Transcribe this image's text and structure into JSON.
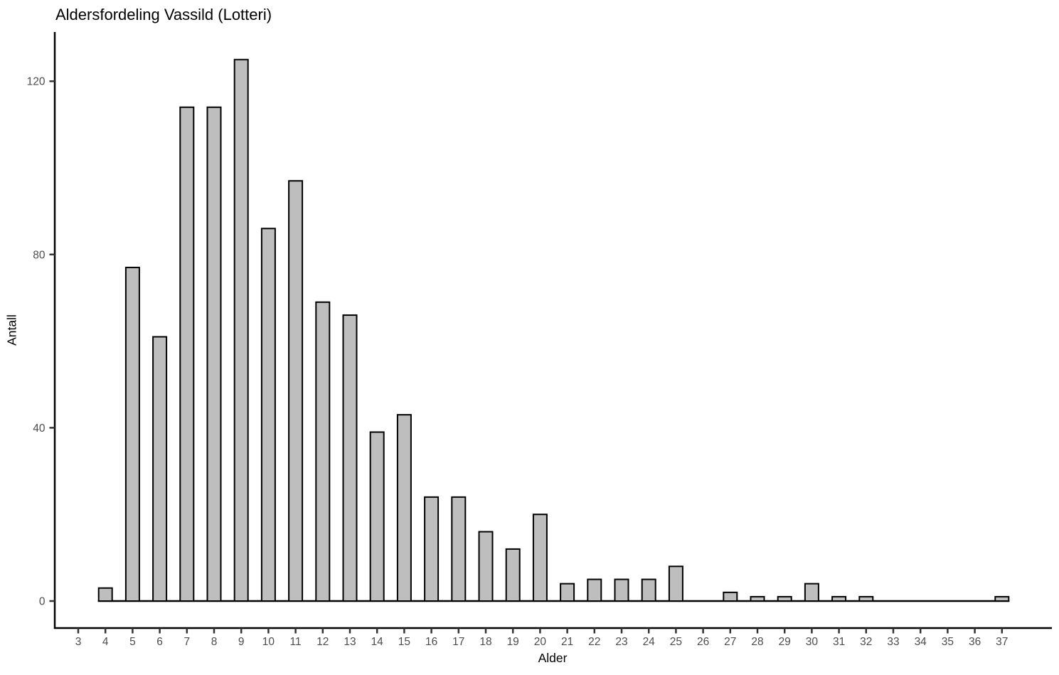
{
  "chart_data": {
    "type": "bar",
    "title": "Aldersfordeling Vassild (Lotteri)",
    "xlabel": "Alder",
    "ylabel": "Antall",
    "categories": [
      3,
      4,
      5,
      6,
      7,
      8,
      9,
      10,
      11,
      12,
      13,
      14,
      15,
      16,
      17,
      18,
      19,
      20,
      21,
      22,
      23,
      24,
      25,
      26,
      27,
      28,
      29,
      30,
      31,
      32,
      33,
      34,
      35,
      36,
      37
    ],
    "values": [
      0,
      3,
      77,
      61,
      114,
      114,
      125,
      86,
      97,
      69,
      66,
      39,
      43,
      24,
      24,
      16,
      12,
      20,
      4,
      5,
      5,
      5,
      8,
      0,
      2,
      1,
      1,
      4,
      1,
      1,
      0,
      0,
      0,
      0,
      1
    ],
    "y_ticks": [
      0,
      40,
      80,
      120
    ],
    "ylim": [
      -6.3,
      131.3
    ],
    "grid": "off",
    "legend": "none",
    "colors": {
      "bar_fill": "#BEBEBE",
      "bar_stroke": "#000000",
      "axis_line": "#000000",
      "tick_mark": "#333333",
      "tick_label": "#4D4D4D",
      "title_text": "#000000"
    }
  }
}
